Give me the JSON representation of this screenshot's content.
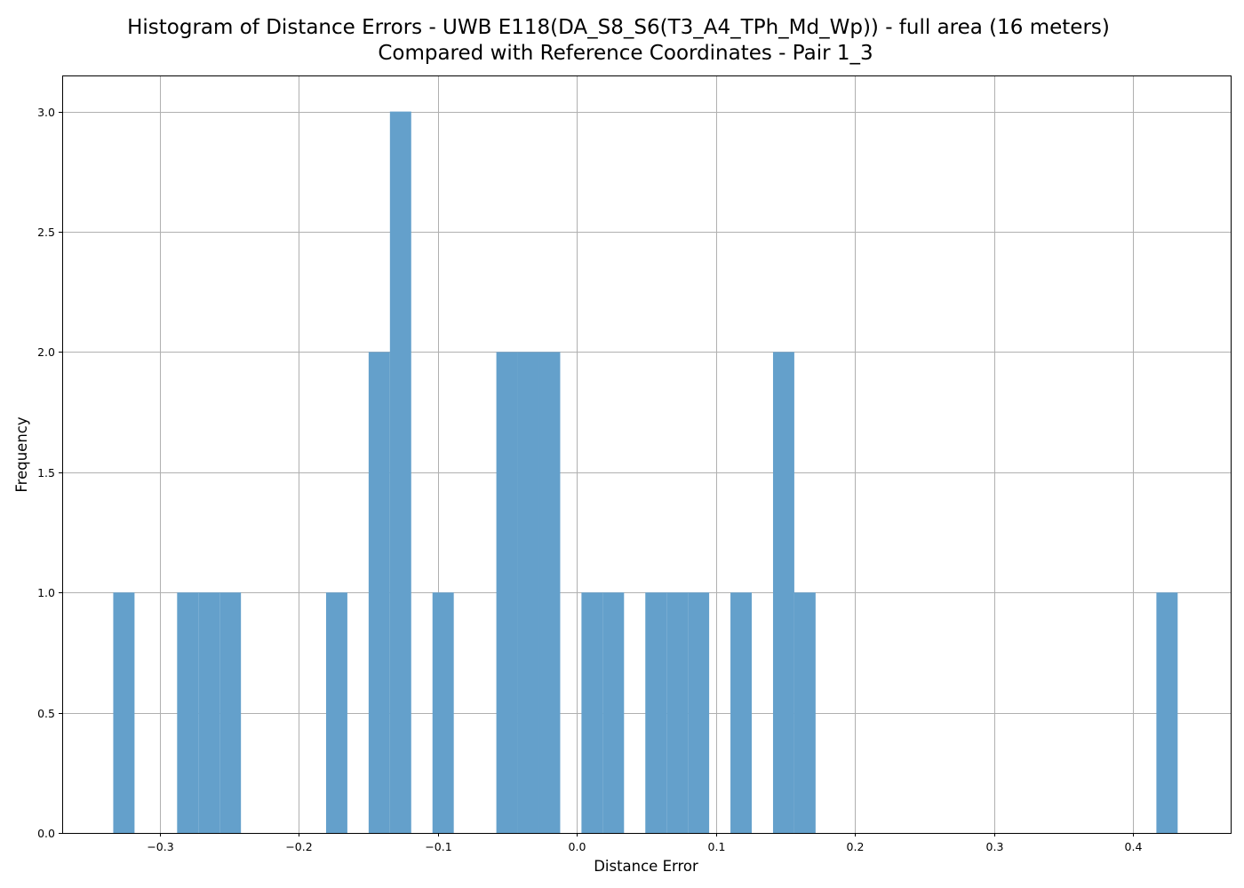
{
  "chart_data": {
    "type": "bar",
    "title_lines": [
      "Histogram of Distance Errors - UWB E118(DA_S8_S6(T3_A4_TPh_Md_Wp)) - full area (16 meters)",
      "Compared with Reference Coordinates - Pair 1_3"
    ],
    "xlabel": "Distance Error",
    "ylabel": "Frequency",
    "xlim": [
      -0.37,
      0.47
    ],
    "ylim": [
      0,
      3.15
    ],
    "grid": true,
    "bar_color": "#64a0cb",
    "bin_width": 0.0153,
    "bins": [
      {
        "x0": -0.3333,
        "x1": -0.318,
        "count": 1
      },
      {
        "x0": -0.2874,
        "x1": -0.2721,
        "count": 1
      },
      {
        "x0": -0.2721,
        "x1": -0.2568,
        "count": 1
      },
      {
        "x0": -0.2568,
        "x1": -0.2415,
        "count": 1
      },
      {
        "x0": -0.1803,
        "x1": -0.165,
        "count": 1
      },
      {
        "x0": -0.1497,
        "x1": -0.1344,
        "count": 2
      },
      {
        "x0": -0.1344,
        "x1": -0.1191,
        "count": 3
      },
      {
        "x0": -0.1038,
        "x1": -0.0885,
        "count": 1
      },
      {
        "x0": -0.0579,
        "x1": -0.0426,
        "count": 2
      },
      {
        "x0": -0.0426,
        "x1": -0.0273,
        "count": 2
      },
      {
        "x0": -0.0273,
        "x1": -0.012,
        "count": 2
      },
      {
        "x0": 0.0033,
        "x1": 0.0186,
        "count": 1
      },
      {
        "x0": 0.0186,
        "x1": 0.0339,
        "count": 1
      },
      {
        "x0": 0.0492,
        "x1": 0.0645,
        "count": 1
      },
      {
        "x0": 0.0645,
        "x1": 0.0798,
        "count": 1
      },
      {
        "x0": 0.0798,
        "x1": 0.0951,
        "count": 1
      },
      {
        "x0": 0.1104,
        "x1": 0.1257,
        "count": 1
      },
      {
        "x0": 0.141,
        "x1": 0.1563,
        "count": 2
      },
      {
        "x0": 0.1563,
        "x1": 0.1716,
        "count": 1
      },
      {
        "x0": 0.4166,
        "x1": 0.4319,
        "count": 1
      }
    ],
    "x_ticks": [
      -0.3,
      -0.2,
      -0.1,
      0.0,
      0.1,
      0.2,
      0.3,
      0.4
    ],
    "x_tick_labels": [
      "−0.3",
      "−0.2",
      "−0.1",
      "0.0",
      "0.1",
      "0.2",
      "0.3",
      "0.4"
    ],
    "y_ticks": [
      0.0,
      0.5,
      1.0,
      1.5,
      2.0,
      2.5,
      3.0
    ],
    "y_tick_labels": [
      "0.0",
      "0.5",
      "1.0",
      "1.5",
      "2.0",
      "2.5",
      "3.0"
    ]
  }
}
